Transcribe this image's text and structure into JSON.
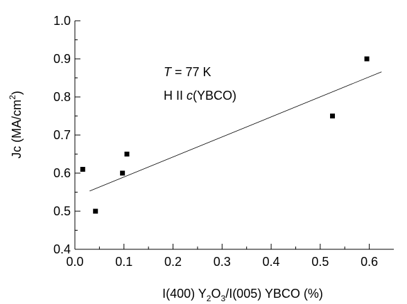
{
  "chart_data": {
    "type": "scatter",
    "xlabel_parts": [
      "I(400) Y",
      "2",
      "O",
      "3",
      "/I(005) YBCO (%)"
    ],
    "ylabel_parts": [
      "Jc (MA/cm",
      "2",
      ")"
    ],
    "xlim": [
      0.0,
      0.65
    ],
    "ylim": [
      0.4,
      1.0
    ],
    "x_ticks": [
      0.0,
      0.1,
      0.2,
      0.3,
      0.4,
      0.5,
      0.6
    ],
    "y_ticks": [
      0.4,
      0.5,
      0.6,
      0.7,
      0.8,
      0.9,
      1.0
    ],
    "x_tick_labels": [
      "0.0",
      "0.1",
      "0.2",
      "0.3",
      "0.4",
      "0.5",
      "0.6"
    ],
    "y_tick_labels": [
      "0.4",
      "0.5",
      "0.6",
      "0.7",
      "0.8",
      "0.9",
      "1.0"
    ],
    "grid": false,
    "points": [
      {
        "x": 0.016,
        "y": 0.61
      },
      {
        "x": 0.042,
        "y": 0.5
      },
      {
        "x": 0.097,
        "y": 0.6
      },
      {
        "x": 0.106,
        "y": 0.65
      },
      {
        "x": 0.525,
        "y": 0.75
      },
      {
        "x": 0.595,
        "y": 0.9
      }
    ],
    "fit_line": [
      {
        "x": 0.03,
        "y": 0.553
      },
      {
        "x": 0.625,
        "y": 0.866
      }
    ],
    "annotations": [
      {
        "italic": "T",
        "text": " = 77 K"
      },
      {
        "prefix": "H II ",
        "italic": "c",
        "suffix": "(YBCO)"
      }
    ]
  }
}
